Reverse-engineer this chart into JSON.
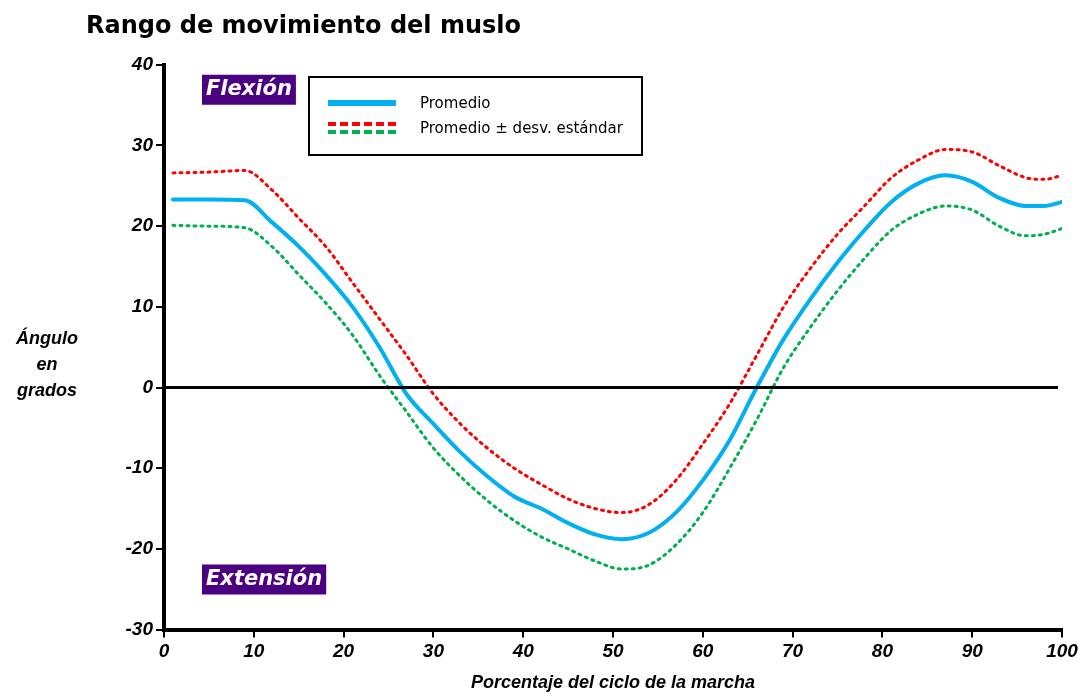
{
  "chart_data": {
    "type": "line",
    "title": "Rango de movimiento del muslo",
    "xlabel": "Porcentaje del ciclo de la marcha",
    "ylabel": "Ángulo en grados",
    "x": [
      1,
      5,
      9,
      12,
      15,
      18,
      21,
      24,
      27,
      30,
      33,
      36,
      39,
      42,
      45,
      48,
      51,
      54,
      57,
      60,
      63,
      66,
      69,
      72,
      75,
      78,
      81,
      84,
      87,
      90,
      93,
      96,
      98,
      100
    ],
    "series": [
      {
        "name": "Promedio",
        "color": "#00b0f0",
        "line_style": "solid",
        "values": [
          23.3,
          23.3,
          23.2,
          20.5,
          17.5,
          14,
          10,
          5,
          -0.8,
          -4.5,
          -8,
          -11,
          -13.5,
          -15,
          -16.8,
          -18.2,
          -18.8,
          -18,
          -15.5,
          -11.5,
          -6.5,
          0,
          6,
          11,
          15.5,
          19.5,
          23,
          25.3,
          26.3,
          25.5,
          23.5,
          22.5,
          22.5,
          23
        ]
      },
      {
        "name": "Promedio ± desv. estándar",
        "color": "#ff0000",
        "line_style": "dotted",
        "values": [
          26.6,
          26.7,
          26.9,
          24.5,
          21,
          17.5,
          13,
          8.5,
          4,
          -0.8,
          -4.5,
          -7.5,
          -10,
          -12,
          -13.8,
          -15,
          -15.5,
          -14.5,
          -11.5,
          -7,
          -2,
          4,
          10,
          14.8,
          19,
          22.5,
          26,
          28.2,
          29.5,
          29.2,
          27.5,
          26,
          25.8,
          26.3
        ]
      },
      {
        "color": "#00b050",
        "line_style": "dotted",
        "values": [
          20.1,
          20,
          19.8,
          17.5,
          14,
          10.5,
          6.5,
          1.5,
          -3,
          -7.5,
          -11,
          -14,
          -16.5,
          -18.5,
          -20,
          -21.5,
          -22.5,
          -22,
          -19.5,
          -15.5,
          -10,
          -4,
          2.5,
          7.5,
          12,
          16,
          19.5,
          21.5,
          22.5,
          22,
          20,
          18.8,
          19,
          19.7
        ]
      }
    ],
    "xlim": [
      0,
      100
    ],
    "xticks": [
      0,
      10,
      20,
      30,
      40,
      50,
      60,
      70,
      80,
      90,
      100
    ],
    "ylim": [
      -30,
      40
    ],
    "yticks": [
      -30,
      -20,
      -10,
      0,
      10,
      20,
      30,
      40
    ],
    "ref_lines": [
      {
        "axis": "y",
        "value": 0,
        "color": "#000000"
      }
    ],
    "annotations": [
      "Flexión",
      "Extensión"
    ],
    "legend": "top",
    "grid": false,
    "marker": "none"
  }
}
